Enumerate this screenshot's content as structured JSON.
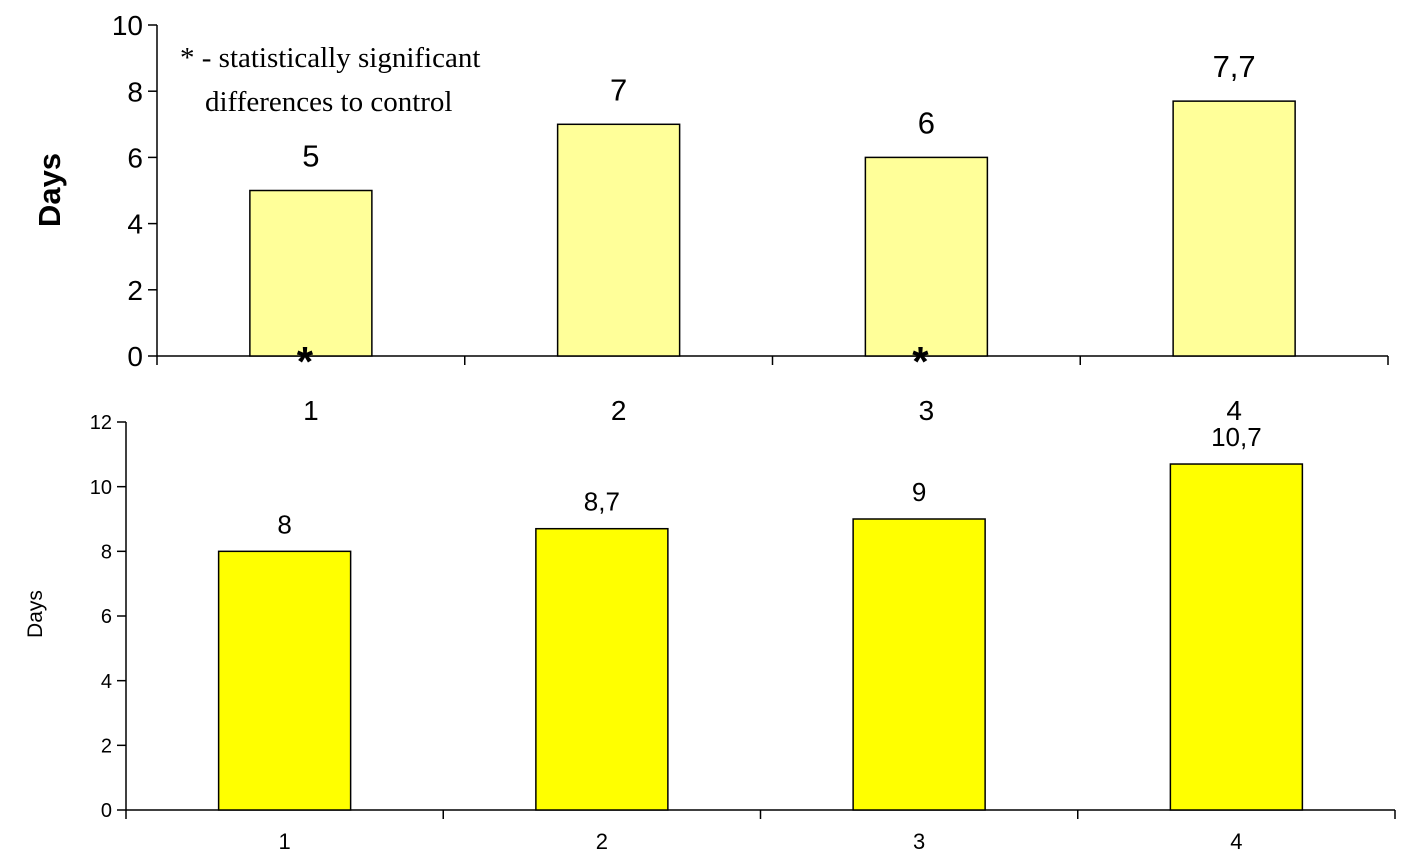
{
  "chart_data": [
    {
      "type": "bar",
      "categories": [
        "1",
        "2",
        "3",
        "4"
      ],
      "values": [
        5,
        7,
        6,
        7.7
      ],
      "value_labels": [
        "5",
        "7",
        "6",
        "7,7"
      ],
      "significance_marks": [
        "*",
        "",
        "*",
        ""
      ],
      "ylabel": "Days",
      "ylim": [
        0,
        10
      ],
      "yticks": [
        "0",
        "2",
        "4",
        "6",
        "8",
        "10"
      ],
      "annotation": [
        "* - statistically significant",
        "differences to control"
      ],
      "bar_color": "#FFFF99"
    },
    {
      "type": "bar",
      "categories": [
        "1",
        "2",
        "3",
        "4"
      ],
      "values": [
        8,
        8.7,
        9,
        10.7
      ],
      "value_labels": [
        "8",
        "8,7",
        "9",
        "10,7"
      ],
      "ylabel": "Days",
      "ylim": [
        0,
        12
      ],
      "yticks": [
        "0",
        "2",
        "4",
        "6",
        "8",
        "10",
        "12"
      ],
      "bar_color": "#FFFF00"
    }
  ]
}
